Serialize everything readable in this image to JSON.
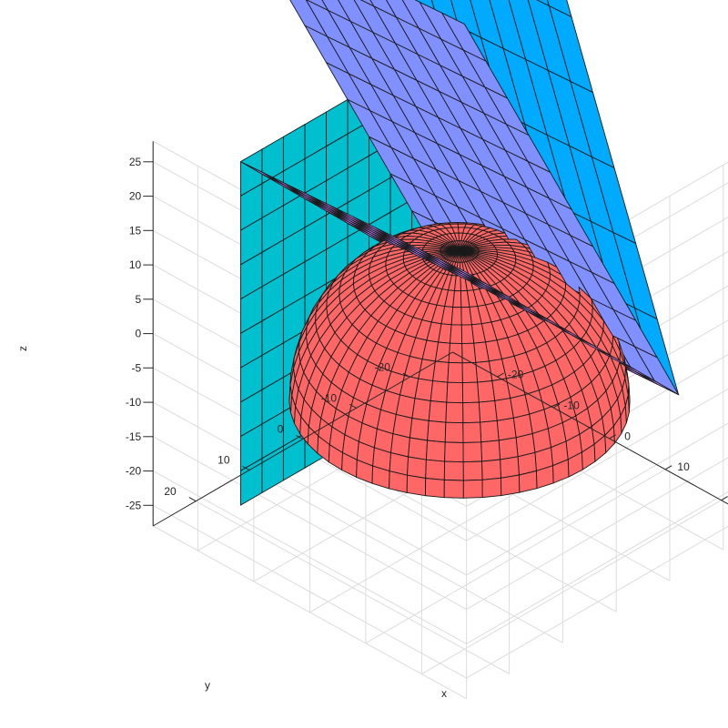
{
  "chart_data": {
    "type": "surface3d",
    "title": "",
    "xlabel": "x",
    "ylabel": "y",
    "zlabel": "z",
    "xticks": [
      -20,
      -10,
      0,
      10,
      20
    ],
    "yticks": [
      -20,
      -10,
      0,
      10,
      20
    ],
    "zticks": [
      -25,
      -20,
      -15,
      -10,
      -5,
      0,
      5,
      10,
      15,
      20,
      25
    ],
    "xlim": [
      -28,
      28
    ],
    "ylim": [
      -28,
      28
    ],
    "zlim": [
      -28,
      28
    ],
    "grid": true,
    "view": "3-D default",
    "planes": [
      {
        "id": "plane-flat",
        "color": "#c080ff",
        "z_at_corner_x-20_y-20": -11,
        "z_slope_x": 0.05,
        "z_slope_y": 0.9
      },
      {
        "id": "plane-mid",
        "color": "#8090ff",
        "z_at_corner_x-20_y-20": -11,
        "z_slope_x": 0.05,
        "z_slope_y": 1.8
      },
      {
        "id": "plane-steep",
        "color": "#00aaff",
        "z_at_corner_x-20_y-20": -11,
        "z_slope_x": 0.05,
        "z_slope_y": 3.2
      },
      {
        "id": "plane-vertical",
        "color": "#00bfcf",
        "x": -20,
        "y_range": [
          -20,
          20
        ],
        "z_range": [
          -25,
          25
        ]
      }
    ],
    "dome": {
      "color": "#ff6666",
      "center": [
        0,
        0,
        -10
      ],
      "radius": 22,
      "opening_top_z": 21,
      "axis": "z"
    }
  }
}
